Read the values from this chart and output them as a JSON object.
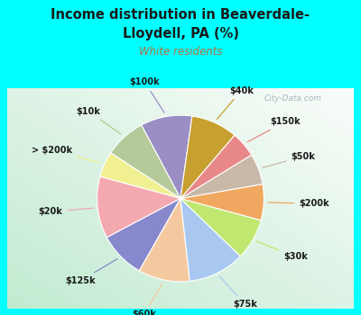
{
  "title_line1": "Income distribution in Beaverdale-",
  "title_line2": "Lloydell, PA (%)",
  "subtitle": "White residents",
  "title_color": "#1a1a1a",
  "subtitle_color": "#b07040",
  "outer_bg": "#00ffff",
  "watermark": "City-Data.com",
  "labels": [
    "$100k",
    "$10k",
    "> $200k",
    "$20k",
    "$125k",
    "$60k",
    "$75k",
    "$30k",
    "$200k",
    "$50k",
    "$150k",
    "$40k"
  ],
  "values": [
    10,
    8,
    5,
    12,
    9,
    10,
    11,
    8,
    7,
    6,
    5,
    9
  ],
  "colors": [
    "#9b8ec4",
    "#b5c99a",
    "#f0f090",
    "#f4a8b0",
    "#8888cc",
    "#f5c9a0",
    "#a8c8f0",
    "#c0e870",
    "#f0a860",
    "#c8b8a8",
    "#e88888",
    "#c8a030"
  ],
  "startangle": 82,
  "figsize": [
    4.0,
    3.5
  ],
  "dpi": 100
}
